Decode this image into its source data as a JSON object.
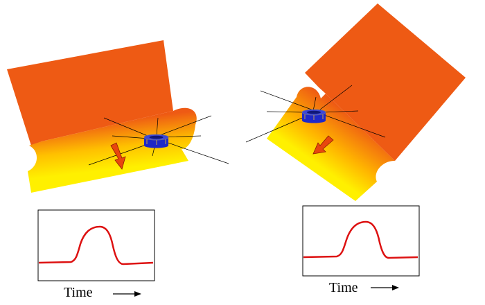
{
  "panels": [
    {
      "id": "left",
      "time_label": "Time"
    },
    {
      "id": "right",
      "time_label": "Time"
    }
  ],
  "colors": {
    "surface_orange": "#EE5A14",
    "surface_yellow": "#FFF000",
    "arrow": "#E8460E",
    "sensor_blue": "#1E28C8",
    "signal_red": "#DD1111"
  },
  "icons": [
    "direction-arrow-icon",
    "sensor-icon",
    "time-arrow-icon"
  ]
}
